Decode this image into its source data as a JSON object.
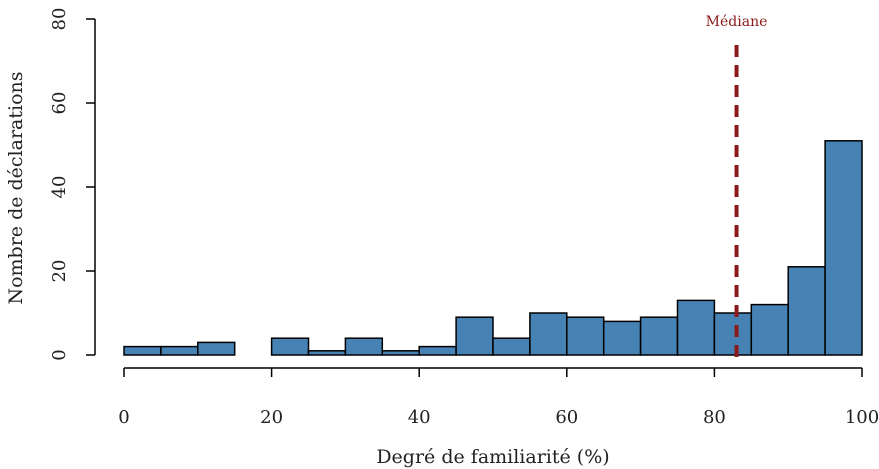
{
  "chart_data": {
    "type": "bar",
    "xlabel": "Degré de familiarité (%)",
    "ylabel": "Nombre de déclarations",
    "bins": [
      {
        "from": 0,
        "to": 5,
        "count": 2
      },
      {
        "from": 5,
        "to": 10,
        "count": 2
      },
      {
        "from": 10,
        "to": 15,
        "count": 3
      },
      {
        "from": 15,
        "to": 20,
        "count": 0
      },
      {
        "from": 20,
        "to": 25,
        "count": 4
      },
      {
        "from": 25,
        "to": 30,
        "count": 1
      },
      {
        "from": 30,
        "to": 35,
        "count": 4
      },
      {
        "from": 35,
        "to": 40,
        "count": 1
      },
      {
        "from": 40,
        "to": 45,
        "count": 2
      },
      {
        "from": 45,
        "to": 50,
        "count": 9
      },
      {
        "from": 50,
        "to": 55,
        "count": 4
      },
      {
        "from": 55,
        "to": 60,
        "count": 10
      },
      {
        "from": 60,
        "to": 65,
        "count": 9
      },
      {
        "from": 65,
        "to": 70,
        "count": 8
      },
      {
        "from": 70,
        "to": 75,
        "count": 9
      },
      {
        "from": 75,
        "to": 80,
        "count": 13
      },
      {
        "from": 80,
        "to": 85,
        "count": 10
      },
      {
        "from": 85,
        "to": 90,
        "count": 12
      },
      {
        "from": 90,
        "to": 95,
        "count": 21
      },
      {
        "from": 95,
        "to": 100,
        "count": 51
      }
    ],
    "xlim": [
      0,
      100
    ],
    "ylim": [
      0,
      80
    ],
    "x_ticks": [
      "0",
      "20",
      "40",
      "60",
      "80",
      "100"
    ],
    "y_ticks": [
      "0",
      "20",
      "40",
      "60",
      "80"
    ],
    "median": {
      "label": "Médiane",
      "value": 83
    },
    "bar_color": "#4682B4",
    "median_color": "#8B1A1A"
  }
}
